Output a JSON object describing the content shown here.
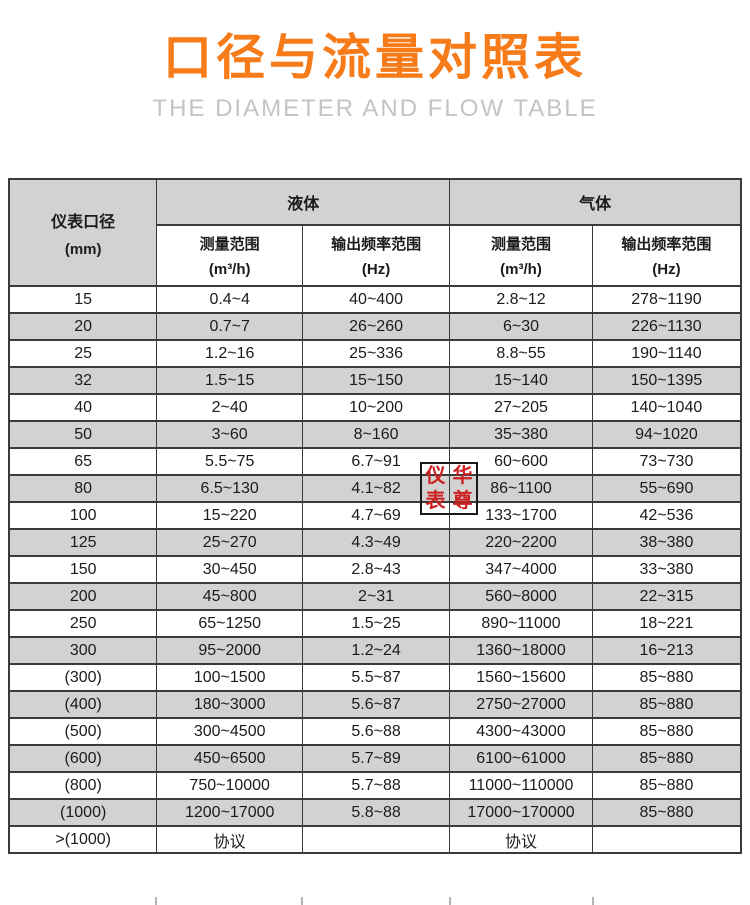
{
  "page": {
    "title": "口径与流量对照表",
    "subtitle": "THE DIAMETER AND FLOW TABLE",
    "title_color": "#f87b1a",
    "subtitle_color": "#c4c4c4"
  },
  "watermark": {
    "chars": [
      "仪",
      "华",
      "表",
      "尊"
    ],
    "color": "#cc2121"
  },
  "table": {
    "header": {
      "diameter_label": "仪表口径",
      "diameter_unit": "(mm)",
      "liquid_label": "液体",
      "gas_label": "气体",
      "range_label": "测量范围",
      "range_unit": "(m³/h)",
      "freq_label": "输出频率范围",
      "freq_unit": "(Hz)"
    },
    "colors": {
      "header_bg": "#d2d2d2",
      "stripe_bg": "#d2d2d2",
      "border": "#3b3b3b"
    },
    "rows": [
      [
        "15",
        "0.4~4",
        "40~400",
        "2.8~12",
        "278~1190"
      ],
      [
        "20",
        "0.7~7",
        "26~260",
        "6~30",
        "226~1130"
      ],
      [
        "25",
        "1.2~16",
        "25~336",
        "8.8~55",
        "190~1140"
      ],
      [
        "32",
        "1.5~15",
        "15~150",
        "15~140",
        "150~1395"
      ],
      [
        "40",
        "2~40",
        "10~200",
        "27~205",
        "140~1040"
      ],
      [
        "50",
        "3~60",
        "8~160",
        "35~380",
        "94~1020"
      ],
      [
        "65",
        "5.5~75",
        "6.7~91",
        "60~600",
        "73~730"
      ],
      [
        "80",
        "6.5~130",
        "4.1~82",
        "86~1100",
        "55~690"
      ],
      [
        "100",
        "15~220",
        "4.7~69",
        "133~1700",
        "42~536"
      ],
      [
        "125",
        "25~270",
        "4.3~49",
        "220~2200",
        "38~380"
      ],
      [
        "150",
        "30~450",
        "2.8~43",
        "347~4000",
        "33~380"
      ],
      [
        "200",
        "45~800",
        "2~31",
        "560~8000",
        "22~315"
      ],
      [
        "250",
        "65~1250",
        "1.5~25",
        "890~11000",
        "18~221"
      ],
      [
        "300",
        "95~2000",
        "1.2~24",
        "1360~18000",
        "16~213"
      ],
      [
        "(300)",
        "100~1500",
        "5.5~87",
        "1560~15600",
        "85~880"
      ],
      [
        "(400)",
        "180~3000",
        "5.6~87",
        "2750~27000",
        "85~880"
      ],
      [
        "(500)",
        "300~4500",
        "5.6~88",
        "4300~43000",
        "85~880"
      ],
      [
        "(600)",
        "450~6500",
        "5.7~89",
        "6100~61000",
        "85~880"
      ],
      [
        "(800)",
        "750~10000",
        "5.7~88",
        "11000~110000",
        "85~880"
      ],
      [
        "(1000)",
        "1200~17000",
        "5.8~88",
        "17000~170000",
        "85~880"
      ],
      [
        ">(1000)",
        "协议",
        "",
        "协议",
        ""
      ]
    ]
  }
}
